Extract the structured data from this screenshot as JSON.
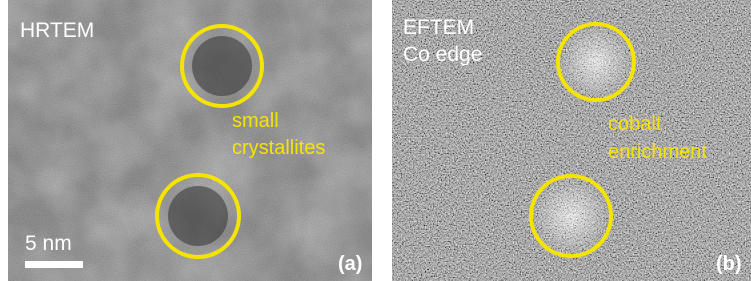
{
  "panels": [
    {
      "title": "HRTEM",
      "annotation": [
        "small",
        "crystallites"
      ],
      "scale_bar": "5 nm",
      "tag": "(a)"
    },
    {
      "title": [
        "EFTEM",
        "Co edge"
      ],
      "annotation": [
        "cobalt",
        "enrichment"
      ],
      "tag": "(b)"
    }
  ]
}
